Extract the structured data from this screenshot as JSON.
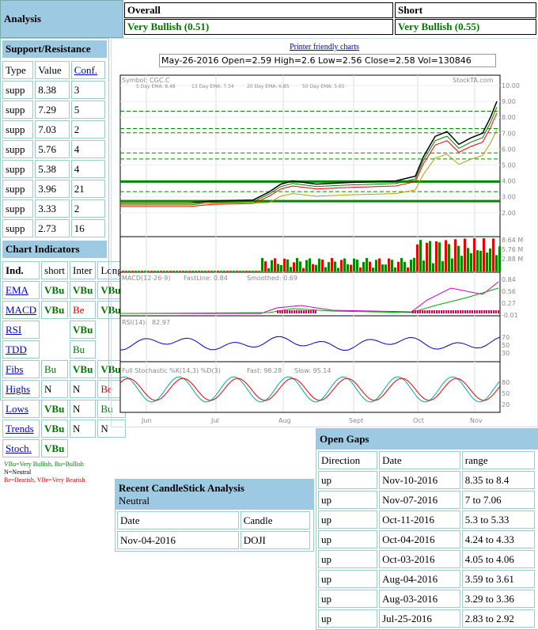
{
  "header": {
    "title": "Analysis",
    "overall_label": "Overall",
    "overall_value": "Very Bullish (0.51)",
    "short_label": "Short",
    "short_value": "Very Bullish (0.55)"
  },
  "sr": {
    "title": "Support/Resistance",
    "cols": [
      "Type",
      "Value",
      "Conf."
    ],
    "rows": [
      [
        "supp",
        "8.38",
        "3"
      ],
      [
        "supp",
        "7.29",
        "5"
      ],
      [
        "supp",
        "7.03",
        "2"
      ],
      [
        "supp",
        "5.76",
        "4"
      ],
      [
        "supp",
        "5.38",
        "4"
      ],
      [
        "supp",
        "3.96",
        "21"
      ],
      [
        "supp",
        "3.33",
        "2"
      ],
      [
        "supp",
        "2.73",
        "16"
      ]
    ]
  },
  "ci": {
    "title": "Chart Indicators",
    "cols": [
      "Ind.",
      "short",
      "Inter",
      "Long"
    ],
    "rows": [
      [
        "EMA",
        "VBu",
        "VBu",
        "VBu"
      ],
      [
        "MACD",
        "VBu",
        "Be",
        "VBu"
      ],
      [
        "RSI",
        "",
        "VBu",
        ""
      ],
      [
        "TDD",
        "",
        "Bu",
        ""
      ],
      [
        "Fibs",
        "Bu",
        "VBu",
        "VBu"
      ],
      [
        "Highs",
        "N",
        "N",
        "Be"
      ],
      [
        "Lows",
        "VBu",
        "N",
        "Bu"
      ],
      [
        "Trends",
        "VBu",
        "N",
        "N"
      ],
      [
        "Stoch.",
        "VBu",
        "",
        ""
      ]
    ],
    "legend1": "VBu=Very Bullish,    Bu=Bullish",
    "legend2": "N=Neutral",
    "legend3": "Be=Bearish,    VBe=Very Bearish"
  },
  "chart": {
    "printer_link": "Printer friendly charts",
    "info": "May-26-2016 Open=2.59 High=2.6 Low=2.56 Close=2.58 Vol=130846",
    "symbol": "Symbol: CGC.C",
    "brand": "StockTA.com",
    "ema5": "5 Day EMA: 8.48",
    "ema13": "13 Day EMA: 7.34",
    "ema20": "20 Day EMA: 6.85",
    "ema50": "50 Day EMA: 5.65",
    "price_ticks": [
      "10.00",
      "9.00",
      "8.00",
      "7.00",
      "6.00",
      "5.00",
      "4.00",
      "3.00",
      "2.00"
    ],
    "vol_ticks": [
      "8.64 M",
      "5.76 M",
      "2.88 M"
    ],
    "macd_label": "MACD(12-26-9)",
    "macd_fast": "FastLine: 0.84",
    "macd_smooth": "Smoothed: 0.69",
    "macd_ticks": [
      "0.84",
      "0.56",
      "0.27",
      "-0.01"
    ],
    "rsi_label": "RSI(14):",
    "rsi_value": "82.97",
    "rsi_ticks": [
      "70",
      "50",
      "30"
    ],
    "stoch_label": "Full Stochastic %K(14,3) %D(3)",
    "stoch_fast": "Fast: 98.28",
    "stoch_slow": "Slow: 95.14",
    "stoch_ticks": [
      "80",
      "50",
      "20"
    ],
    "months": [
      "Jun",
      "Jul",
      "Aug",
      "Sept",
      "Oct",
      "Nov"
    ],
    "colors": {
      "ema5": "#800080",
      "ema13": "#008000",
      "ema20": "#ff0000",
      "ema50": "#b8a000"
    }
  },
  "candle": {
    "title": "Recent CandleStick Analysis",
    "subtitle": "Neutral",
    "cols": [
      "Date",
      "Candle"
    ],
    "rows": [
      [
        "Nov-04-2016",
        "DOJI"
      ]
    ]
  },
  "gaps": {
    "title": "Open Gaps",
    "cols": [
      "Direction",
      "Date",
      "range"
    ],
    "rows": [
      [
        "up",
        "Nov-10-2016",
        "8.35 to 8.4"
      ],
      [
        "up",
        "Nov-07-2016",
        "7 to 7.06"
      ],
      [
        "up",
        "Oct-11-2016",
        "5.3 to 5.33"
      ],
      [
        "up",
        "Oct-04-2016",
        "4.24 to 4.33"
      ],
      [
        "up",
        "Oct-03-2016",
        "4.05 to 4.06"
      ],
      [
        "up",
        "Aug-04-2016",
        "3.59 to 3.61"
      ],
      [
        "up",
        "Aug-03-2016",
        "3.29 to 3.36"
      ],
      [
        "up",
        "Jul-25-2016",
        "2.83 to 2.92"
      ]
    ]
  }
}
